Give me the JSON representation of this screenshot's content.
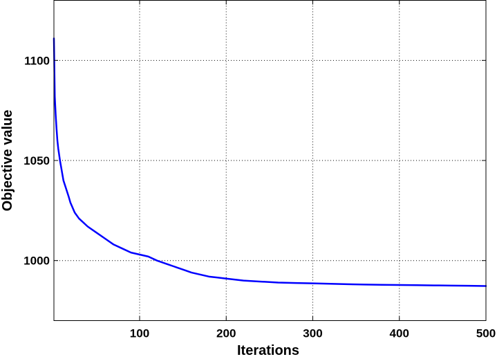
{
  "chart_data": {
    "type": "line",
    "title": "",
    "xlabel": "Iterations",
    "ylabel": "Objective value",
    "xlim": [
      1,
      500
    ],
    "ylim": [
      970,
      1130
    ],
    "xticks": [
      100,
      200,
      300,
      400,
      500
    ],
    "xtick_labels": [
      "100",
      "200",
      "300",
      "400",
      "500"
    ],
    "yticks": [
      1000,
      1050,
      1100
    ],
    "ytick_labels": [
      "1000",
      "1050",
      "1100"
    ],
    "grid": true,
    "line_color": "#0000ff",
    "series": [
      {
        "x": [
          1,
          2,
          3,
          4,
          5,
          6,
          8,
          10,
          12,
          15,
          18,
          20,
          25,
          30,
          35,
          40,
          50,
          60,
          70,
          80,
          90,
          100,
          110,
          120,
          130,
          140,
          150,
          160,
          170,
          180,
          190,
          200,
          220,
          240,
          260,
          280,
          300,
          320,
          340,
          360,
          380,
          400,
          420,
          440,
          460,
          480,
          500
        ],
        "y": [
          1111,
          1082,
          1073,
          1066,
          1060,
          1056,
          1050,
          1045,
          1040,
          1036,
          1032,
          1029,
          1024,
          1021,
          1019,
          1017,
          1014,
          1011,
          1008,
          1006,
          1004,
          1003,
          1002,
          1000,
          998.5,
          997,
          995.5,
          994,
          993,
          992,
          991.5,
          991,
          990,
          989.5,
          989,
          988.8,
          988.6,
          988.4,
          988.2,
          988,
          987.9,
          987.8,
          987.7,
          987.6,
          987.5,
          987.4,
          987.3
        ]
      }
    ]
  }
}
